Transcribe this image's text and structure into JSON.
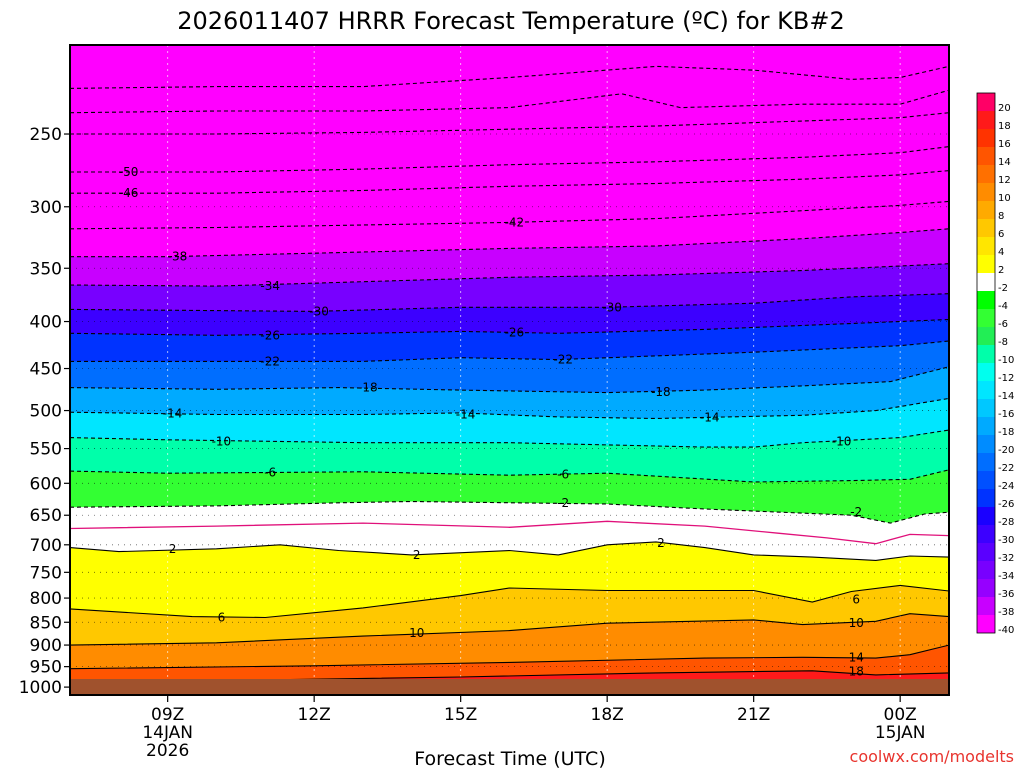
{
  "chart_data": {
    "type": "heatmap",
    "title": "2026011407 HRRR Forecast Temperature (ºC) for KB#2",
    "xlabel": "Forecast Time (UTC)",
    "ylabel": "",
    "credit": "coolwx.com/modelts",
    "x_range_hours": [
      7,
      25
    ],
    "y_axis": {
      "scale": "log",
      "reversed": true,
      "range": [
        200,
        1020
      ]
    },
    "x_ticks": [
      {
        "hour": 9,
        "lines": [
          "09Z",
          "14JAN",
          "2026"
        ]
      },
      {
        "hour": 12,
        "lines": [
          "12Z"
        ]
      },
      {
        "hour": 15,
        "lines": [
          "15Z"
        ]
      },
      {
        "hour": 18,
        "lines": [
          "18Z"
        ]
      },
      {
        "hour": 21,
        "lines": [
          "21Z"
        ]
      },
      {
        "hour": 24,
        "lines": [
          "00Z",
          "15JAN"
        ]
      }
    ],
    "y_ticks": [
      250,
      300,
      350,
      400,
      450,
      500,
      550,
      600,
      650,
      700,
      750,
      800,
      850,
      900,
      950,
      1000
    ],
    "colorbar": {
      "labels": [
        "20",
        "18",
        "16",
        "14",
        "12",
        "10",
        "8",
        "6",
        "4",
        "2",
        "-2",
        "-4",
        "-6",
        "-8",
        "-10",
        "-12",
        "-14",
        "-16",
        "-18",
        "-20",
        "-22",
        "-24",
        "-26",
        "-28",
        "-30",
        "-32",
        "-34",
        "-36",
        "-38",
        "-40"
      ],
      "colors": [
        "#ff0066",
        "#ff1a1a",
        "#ff3300",
        "#ff5500",
        "#ff7000",
        "#ff8c00",
        "#ffaa00",
        "#ffc800",
        "#ffe600",
        "#ffff00",
        "#ffffff",
        "#00ff00",
        "#33ff33",
        "#22ee55",
        "#00ffaa",
        "#00ffee",
        "#00e6ff",
        "#00c8ff",
        "#00aaff",
        "#008cff",
        "#006eff",
        "#0050ff",
        "#0033ff",
        "#1a00ff",
        "#3c00ff",
        "#5a00ff",
        "#7800ff",
        "#9600ff",
        "#c800ff",
        "#ff00ff"
      ]
    },
    "ground_color": "#a0522d",
    "series": [
      {
        "name": "",
        "isotherm": 20,
        "points": [
          [
            7,
            1000
          ],
          [
            14,
            998
          ],
          [
            20,
            990
          ],
          [
            25,
            985
          ]
        ]
      },
      {
        "name": "",
        "isotherm": 18,
        "points": [
          [
            7,
            985
          ],
          [
            11,
            982
          ],
          [
            15,
            975
          ],
          [
            19,
            965
          ],
          [
            22.2,
            960
          ],
          [
            23.5,
            970
          ],
          [
            25,
            965
          ]
        ]
      },
      {
        "name": "",
        "isotherm": 14,
        "points": [
          [
            7,
            955
          ],
          [
            12,
            948
          ],
          [
            16,
            940
          ],
          [
            20,
            930
          ],
          [
            22,
            928
          ],
          [
            23.5,
            930
          ],
          [
            24.2,
            922
          ],
          [
            25,
            900
          ]
        ]
      },
      {
        "name": "",
        "isotherm": 10,
        "points": [
          [
            7,
            900
          ],
          [
            10,
            895
          ],
          [
            13,
            880
          ],
          [
            16,
            868
          ],
          [
            18,
            852
          ],
          [
            21,
            845
          ],
          [
            22,
            855
          ],
          [
            23.5,
            848
          ],
          [
            24.2,
            832
          ],
          [
            25,
            838
          ]
        ]
      },
      {
        "name": "",
        "isotherm": 6,
        "points": [
          [
            7,
            822
          ],
          [
            9.5,
            838
          ],
          [
            11,
            840
          ],
          [
            13,
            820
          ],
          [
            15,
            795
          ],
          [
            16,
            780
          ],
          [
            18,
            785
          ],
          [
            21,
            785
          ],
          [
            22.2,
            808
          ],
          [
            23,
            787
          ],
          [
            24,
            775
          ],
          [
            25,
            786
          ]
        ]
      },
      {
        "name": "",
        "isotherm": 2,
        "points": [
          [
            7,
            705
          ],
          [
            8,
            712
          ],
          [
            10,
            707
          ],
          [
            11.3,
            700
          ],
          [
            12.5,
            710
          ],
          [
            14,
            718
          ],
          [
            16,
            710
          ],
          [
            17,
            718
          ],
          [
            18,
            700
          ],
          [
            19,
            695
          ],
          [
            20,
            705
          ],
          [
            21,
            718
          ],
          [
            22.2,
            722
          ],
          [
            23.5,
            728
          ],
          [
            24.2,
            720
          ],
          [
            25,
            722
          ]
        ]
      },
      {
        "name": "",
        "isotherm": 0,
        "points": [
          [
            7,
            672
          ],
          [
            10,
            668
          ],
          [
            13,
            663
          ],
          [
            16,
            670
          ],
          [
            18,
            660
          ],
          [
            20,
            668
          ],
          [
            21.5,
            680
          ],
          [
            22.5,
            688
          ],
          [
            23.5,
            698
          ],
          [
            24.2,
            682
          ],
          [
            25,
            684
          ]
        ]
      },
      {
        "name": "",
        "isotherm": -2,
        "points": [
          [
            7,
            637
          ],
          [
            10,
            635
          ],
          [
            12.5,
            630
          ],
          [
            14,
            628
          ],
          [
            18,
            632
          ],
          [
            20,
            640
          ],
          [
            23,
            650
          ],
          [
            23.8,
            663
          ],
          [
            24.5,
            648
          ],
          [
            25,
            645
          ]
        ]
      },
      {
        "name": "",
        "isotherm": -6,
        "points": [
          [
            7,
            582
          ],
          [
            9,
            585
          ],
          [
            13,
            583
          ],
          [
            16,
            588
          ],
          [
            18,
            585
          ],
          [
            21,
            598
          ],
          [
            23,
            596
          ],
          [
            24.2,
            594
          ],
          [
            25,
            580
          ]
        ]
      },
      {
        "name": "",
        "isotherm": -10,
        "points": [
          [
            7,
            535
          ],
          [
            9,
            538
          ],
          [
            13,
            542
          ],
          [
            16,
            542
          ],
          [
            20,
            548
          ],
          [
            21,
            548
          ],
          [
            22,
            542
          ],
          [
            24,
            535
          ],
          [
            25,
            525
          ]
        ]
      },
      {
        "name": "",
        "isotherm": -14,
        "points": [
          [
            7,
            502
          ],
          [
            10,
            505
          ],
          [
            13,
            505
          ],
          [
            15,
            503
          ],
          [
            17,
            508
          ],
          [
            19,
            510
          ],
          [
            22,
            506
          ],
          [
            23.5,
            500
          ],
          [
            25,
            485
          ]
        ]
      },
      {
        "name": "",
        "isotherm": -18,
        "points": [
          [
            7,
            472
          ],
          [
            10,
            474
          ],
          [
            12.5,
            472
          ],
          [
            15,
            475
          ],
          [
            18,
            478
          ],
          [
            20,
            475
          ],
          [
            22,
            470
          ],
          [
            23.8,
            465
          ],
          [
            25,
            448
          ]
        ]
      },
      {
        "name": "",
        "isotherm": -22,
        "points": [
          [
            7,
            442
          ],
          [
            10,
            442
          ],
          [
            13,
            442
          ],
          [
            15,
            438
          ],
          [
            17,
            440
          ],
          [
            19,
            436
          ],
          [
            21,
            432
          ],
          [
            24,
            425
          ],
          [
            25,
            420
          ]
        ]
      },
      {
        "name": "",
        "isotherm": -26,
        "points": [
          [
            7,
            412
          ],
          [
            10,
            414
          ],
          [
            13,
            412
          ],
          [
            15,
            410
          ],
          [
            17,
            412
          ],
          [
            20,
            408
          ],
          [
            23,
            402
          ],
          [
            25,
            398
          ]
        ]
      },
      {
        "name": "",
        "isotherm": -30,
        "points": [
          [
            7,
            388
          ],
          [
            12,
            390
          ],
          [
            15,
            386
          ],
          [
            18,
            386
          ],
          [
            21,
            382
          ],
          [
            23,
            376
          ],
          [
            25,
            373
          ]
        ]
      },
      {
        "name": "",
        "isotherm": -34,
        "points": [
          [
            7,
            365
          ],
          [
            10,
            366
          ],
          [
            13,
            362
          ],
          [
            16,
            358
          ],
          [
            19,
            356
          ],
          [
            22,
            352
          ],
          [
            24,
            348
          ],
          [
            25,
            346
          ]
        ]
      },
      {
        "name": "",
        "isotherm": -38,
        "points": [
          [
            7,
            340
          ],
          [
            9,
            340
          ],
          [
            13,
            336
          ],
          [
            16,
            333
          ],
          [
            19,
            331
          ],
          [
            22,
            325
          ],
          [
            24,
            320
          ],
          [
            25,
            317
          ]
        ]
      },
      {
        "name": "",
        "isotherm": -42,
        "points": [
          [
            7,
            317
          ],
          [
            10,
            316
          ],
          [
            13,
            314
          ],
          [
            16,
            312
          ],
          [
            19,
            309
          ],
          [
            22,
            303
          ],
          [
            24,
            299
          ],
          [
            25,
            296
          ]
        ]
      },
      {
        "name": "",
        "isotherm": -46,
        "points": [
          [
            7,
            290
          ],
          [
            10,
            290
          ],
          [
            13,
            288
          ],
          [
            16,
            285
          ],
          [
            19,
            283
          ],
          [
            22,
            280
          ],
          [
            24,
            277
          ],
          [
            25,
            274
          ]
        ]
      },
      {
        "name": "",
        "isotherm": -50,
        "points": [
          [
            7,
            275
          ],
          [
            10,
            275
          ],
          [
            13,
            273
          ],
          [
            16,
            270
          ],
          [
            19,
            268
          ],
          [
            22,
            265
          ],
          [
            24,
            262
          ],
          [
            25,
            258
          ]
        ]
      },
      {
        "name": "",
        "isotherm": -54,
        "points": [
          [
            7,
            250
          ],
          [
            10,
            250
          ],
          [
            13,
            249
          ],
          [
            16,
            247
          ],
          [
            19,
            245
          ],
          [
            22,
            242
          ],
          [
            24,
            240
          ],
          [
            25,
            237
          ]
        ]
      },
      {
        "name": "",
        "isotherm": -58,
        "points": [
          [
            7,
            237
          ],
          [
            10,
            236
          ],
          [
            13,
            236
          ],
          [
            16,
            234
          ],
          [
            18.3,
            226
          ],
          [
            19.5,
            234
          ],
          [
            22,
            232
          ],
          [
            24,
            232
          ],
          [
            25,
            224
          ]
        ]
      },
      {
        "name": "",
        "isotherm": -62,
        "points": [
          [
            7,
            223
          ],
          [
            10,
            222
          ],
          [
            13,
            222
          ],
          [
            16,
            217
          ],
          [
            19,
            211
          ],
          [
            21,
            213
          ],
          [
            23,
            218
          ],
          [
            24,
            217
          ],
          [
            25,
            211
          ]
        ]
      }
    ],
    "contour_labels": [
      {
        "text": "-50",
        "hour": 8.2,
        "p": 275
      },
      {
        "text": "-46",
        "hour": 8.2,
        "p": 290
      },
      {
        "text": "-42",
        "hour": 16.1,
        "p": 312
      },
      {
        "text": "-38",
        "hour": 9.2,
        "p": 340
      },
      {
        "text": "-34",
        "hour": 11.1,
        "p": 366
      },
      {
        "text": "-30",
        "hour": 12.1,
        "p": 390
      },
      {
        "text": "-30",
        "hour": 18.1,
        "p": 386
      },
      {
        "text": "-26",
        "hour": 11.1,
        "p": 414
      },
      {
        "text": "-26",
        "hour": 16.1,
        "p": 411
      },
      {
        "text": "-22",
        "hour": 11.1,
        "p": 442
      },
      {
        "text": "-22",
        "hour": 17.1,
        "p": 440
      },
      {
        "text": "-18",
        "hour": 13.1,
        "p": 472
      },
      {
        "text": "-18",
        "hour": 19.1,
        "p": 477
      },
      {
        "text": "-14",
        "hour": 9.1,
        "p": 504
      },
      {
        "text": "-14",
        "hour": 15.1,
        "p": 505
      },
      {
        "text": "-14",
        "hour": 20.1,
        "p": 509
      },
      {
        "text": "-10",
        "hour": 10.1,
        "p": 540
      },
      {
        "text": "-10",
        "hour": 22.8,
        "p": 540
      },
      {
        "text": "-6",
        "hour": 11.1,
        "p": 584
      },
      {
        "text": "-6",
        "hour": 17.1,
        "p": 587
      },
      {
        "text": "-2",
        "hour": 17.1,
        "p": 630
      },
      {
        "text": "-2",
        "hour": 23.1,
        "p": 645
      },
      {
        "text": "2",
        "hour": 9.1,
        "p": 707
      },
      {
        "text": "2",
        "hour": 14.1,
        "p": 718
      },
      {
        "text": "2",
        "hour": 19.1,
        "p": 697
      },
      {
        "text": "6",
        "hour": 10.1,
        "p": 840
      },
      {
        "text": "6",
        "hour": 23.1,
        "p": 803
      },
      {
        "text": "10",
        "hour": 14.1,
        "p": 873
      },
      {
        "text": "10",
        "hour": 23.1,
        "p": 852
      },
      {
        "text": "14",
        "hour": 23.1,
        "p": 928
      },
      {
        "text": "18",
        "hour": 23.1,
        "p": 962
      }
    ]
  }
}
